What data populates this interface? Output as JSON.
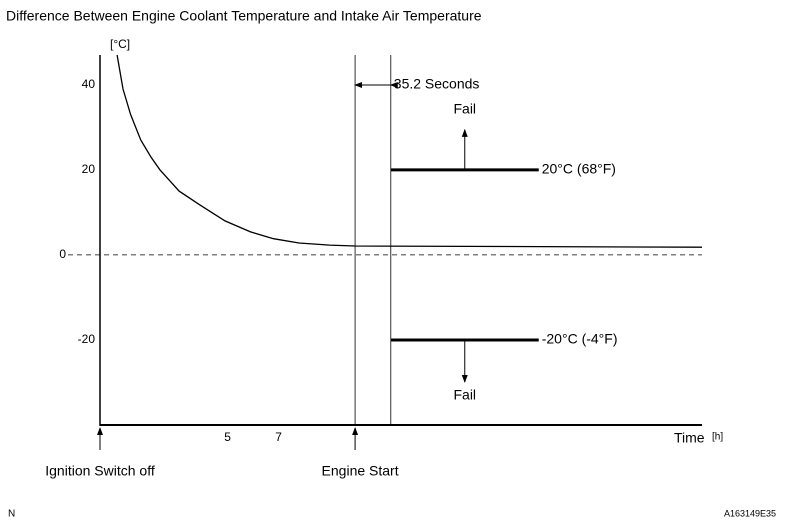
{
  "chart_data": {
    "type": "line",
    "title": "Difference Between Engine Coolant Temperature and Intake Air Temperature",
    "y_label": "[°C]",
    "x_label": "Time",
    "x_unit": "[h]",
    "x": [
      0.67,
      0.9,
      1.2,
      1.6,
      2.0,
      2.35,
      3.1,
      3.9,
      4.9,
      5.9,
      6.8,
      7.8,
      9,
      10,
      23.6
    ],
    "values": [
      47,
      39,
      33,
      27,
      23,
      20,
      15,
      11.8,
      8,
      5.4,
      3.8,
      2.8,
      2.3,
      2.1,
      1.8
    ],
    "color": "#000000",
    "xlim": [
      0,
      23.6
    ],
    "ylim": [
      -40,
      47
    ],
    "xticks": [
      5,
      7
    ],
    "yticks": [
      40,
      20,
      0,
      -20
    ],
    "reference_lines": [
      0
    ],
    "markers": [
      {
        "x": 0,
        "label": "Ignition Switch off"
      },
      {
        "x": 10,
        "label": "Engine Start"
      }
    ],
    "interval": {
      "x": [
        10,
        11.4
      ],
      "label": "35.2 Seconds"
    },
    "thresholds": [
      {
        "value": 20,
        "x": [
          11.4,
          17.2
        ],
        "label": "20°C (68°F)",
        "fail": "Fail",
        "direction": "up"
      },
      {
        "value": -20,
        "x": [
          11.4,
          17.2
        ],
        "label": "-20°C (-4°F)",
        "fail": "Fail",
        "direction": "down"
      }
    ],
    "footer_left": "N",
    "footer_right": "A163149E35"
  }
}
